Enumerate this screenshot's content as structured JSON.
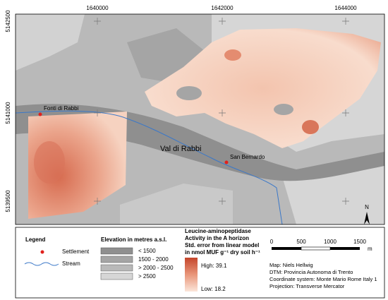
{
  "map": {
    "x_ticks": [
      "1640000",
      "1642000",
      "1644000"
    ],
    "y_ticks": [
      "5142500",
      "5141000",
      "5139500"
    ],
    "places": [
      "Fonti di Rabbi",
      "San Bernardo"
    ],
    "area_label": "Val di Rabbi",
    "north": "N"
  },
  "legend": {
    "title": "Legend",
    "settlement": "Settlement",
    "stream": "Stream",
    "elevation_title": "Elevation in metres a.s.l.",
    "elevation_classes": [
      "< 1500",
      "1500 - 2000",
      "> 2000 - 2500",
      "> 2500"
    ],
    "activity_title": [
      "Leucine-aminopeptidase",
      "Activity in the A horizon",
      "Std. error from linear model",
      "in nmol MUF g⁻¹ dry soil h⁻¹"
    ],
    "high": "High: 39.1",
    "low": "Low: 18.2",
    "scale_labels": [
      "0",
      "500",
      "1000",
      "1500",
      "m"
    ],
    "credits": [
      "Map: Niels Hellwig",
      "DTM: Provincia Autonoma di Trento",
      "Coordinate system: Monte Mario Rome Italy 1",
      "Projection: Transverse Mercator"
    ]
  }
}
